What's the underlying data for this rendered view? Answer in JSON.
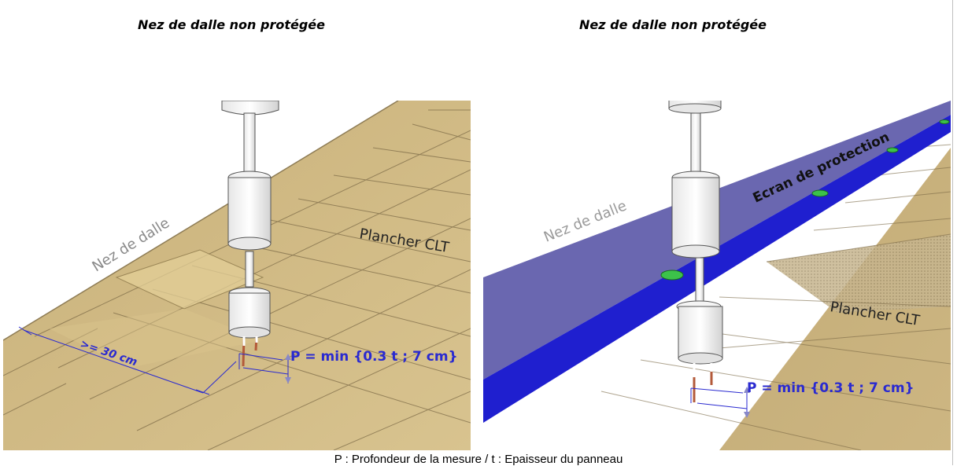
{
  "titles": {
    "left": "Nez de dalle non protégée",
    "right": "Nez de dalle non protégée"
  },
  "left_panel": {
    "edge_label": "Nez de dalle",
    "floor_label": "Plancher CLT",
    "distance_label": ">= 30 cm",
    "formula": "P = min {0.3 t ; 7 cm}"
  },
  "right_panel": {
    "edge_label": "Nez de dalle",
    "screen_label": "Ecran de protection",
    "floor_label": "Plancher CLT",
    "formula": "P = min {0.3 t ; 7 cm}"
  },
  "caption": "P : Profondeur de la mesure / t : Epaisseur du panneau",
  "colors": {
    "wood_light": "#d6c08a",
    "wood_dark": "#b89f64",
    "screen_top": "#6a67b0",
    "screen_edge": "#1f1fcf",
    "dimension": "#2a2ad0",
    "hole": "#3cc24a"
  }
}
